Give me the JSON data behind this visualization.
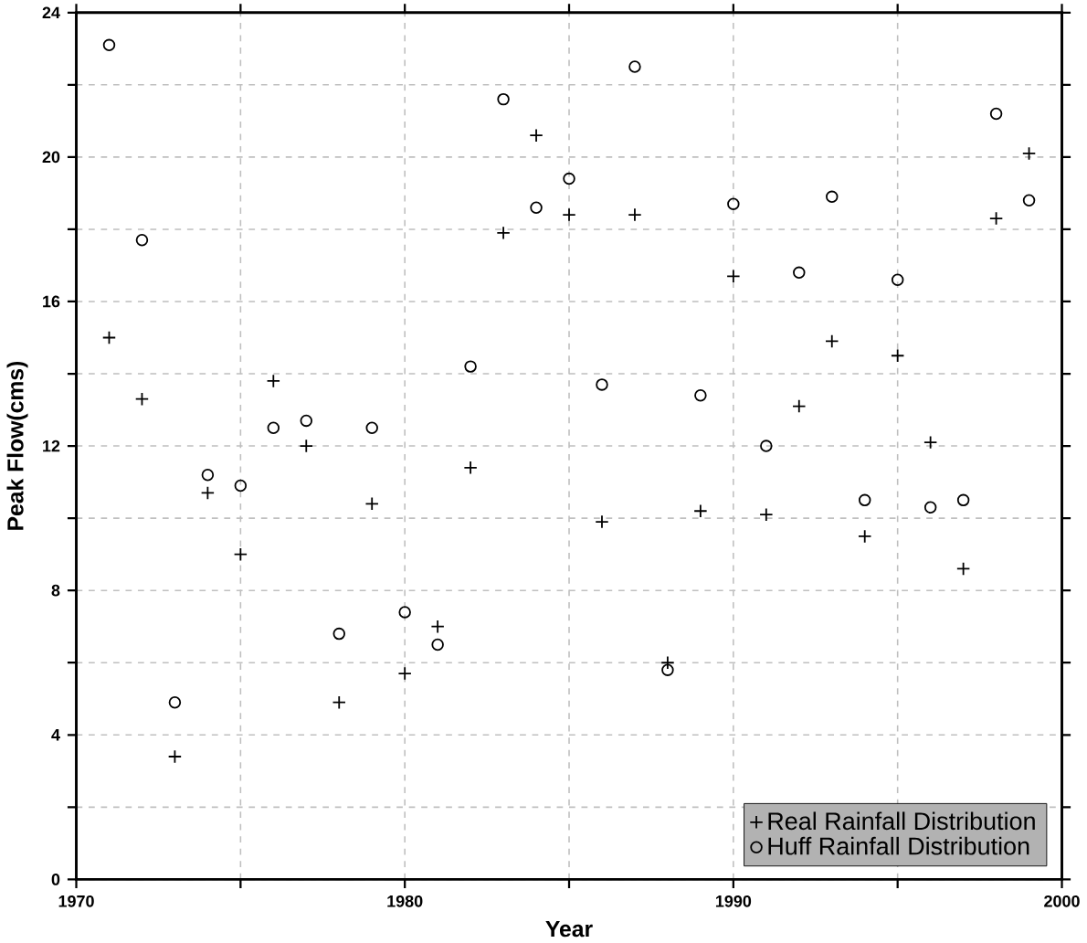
{
  "chart_data": {
    "type": "scatter",
    "xlabel": "Year",
    "ylabel": "Peak Flow(cms)",
    "x": [
      1971,
      1972,
      1973,
      1974,
      1975,
      1976,
      1977,
      1978,
      1979,
      1980,
      1981,
      1982,
      1983,
      1984,
      1985,
      1986,
      1987,
      1988,
      1989,
      1990,
      1991,
      1992,
      1993,
      1994,
      1995,
      1996,
      1997,
      1998,
      1999
    ],
    "series": [
      {
        "name": "Real Rainfall Distribution",
        "color": "#000000",
        "marker": "cross",
        "values": [
          15.0,
          13.3,
          3.4,
          10.7,
          9.0,
          13.8,
          12.0,
          4.9,
          10.4,
          5.7,
          7.0,
          11.4,
          17.9,
          20.6,
          18.4,
          9.9,
          18.4,
          6.0,
          10.2,
          16.7,
          10.1,
          13.1,
          14.9,
          9.5,
          14.5,
          12.1,
          8.6,
          18.3,
          20.1
        ]
      },
      {
        "name": "Huff Rainfall Distribution",
        "color": "#000000",
        "marker": "circle",
        "values": [
          23.1,
          17.7,
          4.9,
          11.2,
          10.9,
          12.5,
          12.7,
          6.8,
          12.5,
          7.4,
          6.5,
          14.2,
          21.6,
          18.6,
          19.4,
          13.7,
          22.5,
          5.8,
          13.4,
          18.7,
          12.0,
          16.8,
          18.9,
          10.5,
          16.6,
          10.3,
          10.5,
          21.2,
          18.8
        ]
      }
    ],
    "xlim": [
      1970,
      2000
    ],
    "xticks": [
      1970,
      {
        "value": 1975,
        "label": null
      },
      1980,
      {
        "value": 1985,
        "label": null
      },
      1990,
      {
        "value": 1995,
        "label": null
      },
      2000
    ],
    "ylim": [
      0,
      24
    ],
    "yticks": [
      0,
      {
        "value": 2,
        "label": null
      },
      4,
      {
        "value": 6,
        "label": null
      },
      8,
      {
        "value": 10,
        "label": null
      },
      12,
      {
        "value": 14,
        "label": null
      },
      16,
      {
        "value": 18,
        "label": null
      },
      20,
      {
        "value": 22,
        "label": null
      },
      24
    ],
    "grid": true,
    "legend": "bottom right"
  }
}
